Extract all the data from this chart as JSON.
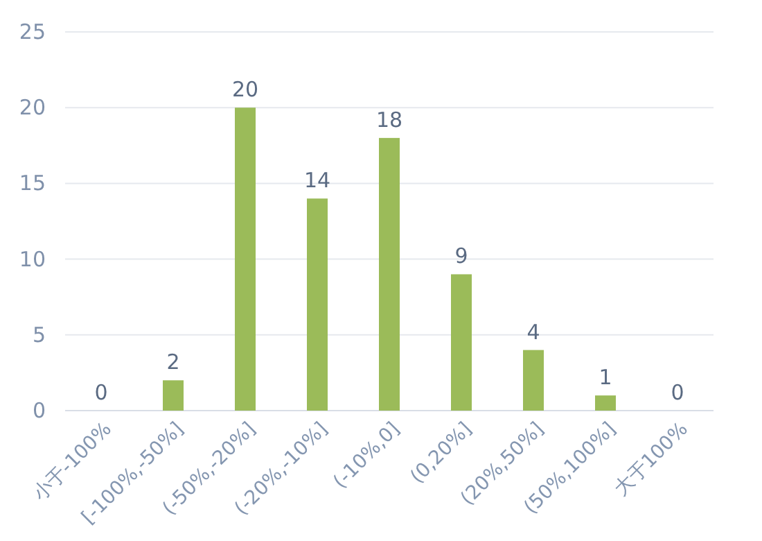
{
  "chart_data": {
    "type": "bar",
    "categories": [
      "小于-100%",
      "[-100%,-50%]",
      "(-50%,-20%]",
      "(-20%,-10%]",
      "(-10%,0]",
      "(0,20%]",
      "(20%,50%]",
      "(50%,100%]",
      "大于100%"
    ],
    "values": [
      0,
      2,
      20,
      14,
      18,
      9,
      4,
      1,
      0
    ],
    "color": "#9bbb59",
    "ylim": [
      0,
      25
    ],
    "yticks": [
      0,
      5,
      10,
      15,
      20,
      25
    ],
    "grid": "y",
    "data_labels": true
  }
}
